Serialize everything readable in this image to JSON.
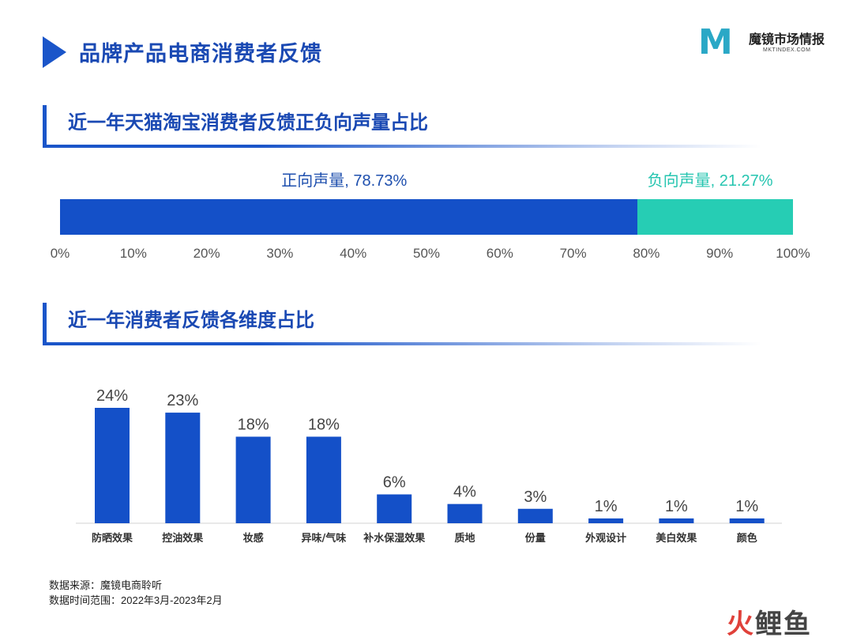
{
  "page": {
    "title": "品牌产品电商消费者反馈"
  },
  "logo": {
    "mark": "M",
    "name": "魔镜市场情报",
    "sub": "MKTINDEX.COM"
  },
  "sections": {
    "sentiment_title": "近一年天猫淘宝消费者反馈正负向声量占比",
    "dimension_title": "近一年消费者反馈各维度占比"
  },
  "colors": {
    "accent": "#1a55c9",
    "bar_blue": "#1450c8",
    "negative_teal": "#26cdb4"
  },
  "chart_data": [
    {
      "type": "bar",
      "orientation": "horizontal-stacked",
      "title": "近一年天猫淘宝消费者反馈正负向声量占比",
      "series": [
        {
          "name": "正向声量",
          "value": 78.73,
          "label": "正向声量, 78.73%",
          "color": "#1450c8"
        },
        {
          "name": "负向声量",
          "value": 21.27,
          "label": "负向声量, 21.27%",
          "color": "#26cdb4"
        }
      ],
      "xlim": [
        0,
        100
      ],
      "ticks": [
        "0%",
        "10%",
        "20%",
        "30%",
        "40%",
        "50%",
        "60%",
        "70%",
        "80%",
        "90%",
        "100%"
      ],
      "grid": false
    },
    {
      "type": "bar",
      "title": "近一年消费者反馈各维度占比",
      "categories": [
        "防晒效果",
        "控油效果",
        "妆感",
        "异味/气味",
        "补水保湿效果",
        "质地",
        "份量",
        "外观设计",
        "美白效果",
        "颜色"
      ],
      "values": [
        24,
        23,
        18,
        18,
        6,
        4,
        3,
        1,
        1,
        1
      ],
      "labels": [
        "24%",
        "23%",
        "18%",
        "18%",
        "6%",
        "4%",
        "3%",
        "1%",
        "1%",
        "1%"
      ],
      "ylim": [
        0,
        24
      ],
      "grid": false
    }
  ],
  "source": {
    "line1": "数据来源：魔镜电商聆听",
    "line2": "数据时间范围：2022年3月-2023年2月"
  },
  "watermark": {
    "part1": "火",
    "part2": "鲤鱼"
  }
}
